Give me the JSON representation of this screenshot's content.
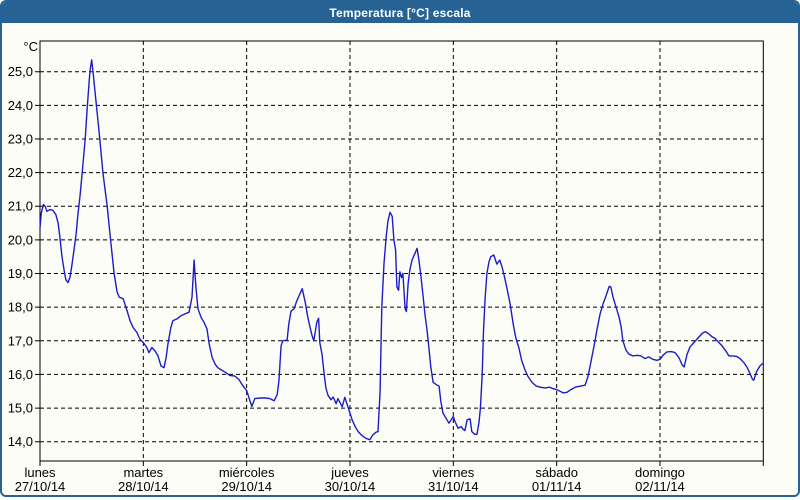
{
  "window": {
    "title": "Temperatura [°C] escala"
  },
  "colors": {
    "title_bar": "#266394",
    "window_border": "#266394",
    "line": "#1c1cc8",
    "grid": "#000000",
    "background": "#fdfdf7"
  },
  "chart_data": {
    "type": "line",
    "title": "Temperatura [°C] escala",
    "ylabel": "°C",
    "unit_label": "°C",
    "ylim": [
      13.4,
      25.9
    ],
    "xlim_hours": [
      0,
      168
    ],
    "grid": true,
    "y_ticks": [
      {
        "value": 25,
        "label": "25,0"
      },
      {
        "value": 24,
        "label": "24,0"
      },
      {
        "value": 23,
        "label": "23,0"
      },
      {
        "value": 22,
        "label": "22,0"
      },
      {
        "value": 21,
        "label": "21,0"
      },
      {
        "value": 20,
        "label": "20,0"
      },
      {
        "value": 19,
        "label": "19,0"
      },
      {
        "value": 18,
        "label": "18,0"
      },
      {
        "value": 17,
        "label": "17,0"
      },
      {
        "value": 16,
        "label": "16,0"
      },
      {
        "value": 15,
        "label": "15,0"
      },
      {
        "value": 14,
        "label": "14,0"
      }
    ],
    "x_days": [
      {
        "name": "lunes",
        "date": "27/10/14",
        "start_hour": 0
      },
      {
        "name": "martes",
        "date": "28/10/14",
        "start_hour": 24
      },
      {
        "name": "miércoles",
        "date": "29/10/14",
        "start_hour": 48
      },
      {
        "name": "jueves",
        "date": "30/10/14",
        "start_hour": 72
      },
      {
        "name": "viernes",
        "date": "31/10/14",
        "start_hour": 96
      },
      {
        "name": "sábado",
        "date": "01/11/14",
        "start_hour": 120
      },
      {
        "name": "domingo",
        "date": "02/11/14",
        "start_hour": 144
      }
    ],
    "series": [
      {
        "name": "Temperatura",
        "color": "#1c1cc8",
        "points": [
          [
            0,
            20.35
          ],
          [
            0.3,
            20.8
          ],
          [
            0.8,
            21.05
          ],
          [
            1.2,
            21.0
          ],
          [
            1.6,
            20.85
          ],
          [
            2.3,
            20.9
          ],
          [
            3.0,
            20.88
          ],
          [
            3.7,
            20.75
          ],
          [
            4.2,
            20.5
          ],
          [
            4.6,
            20.1
          ],
          [
            5.1,
            19.5
          ],
          [
            5.6,
            19.1
          ],
          [
            6.0,
            18.82
          ],
          [
            6.5,
            18.73
          ],
          [
            7.0,
            18.9
          ],
          [
            7.4,
            19.25
          ],
          [
            7.9,
            19.7
          ],
          [
            8.4,
            20.2
          ],
          [
            8.8,
            20.75
          ],
          [
            9.3,
            21.3
          ],
          [
            9.8,
            22.0
          ],
          [
            10.5,
            23.0
          ],
          [
            11.0,
            24.0
          ],
          [
            11.6,
            25.0
          ],
          [
            12.0,
            25.35
          ],
          [
            12.3,
            25.0
          ],
          [
            13.1,
            24.0
          ],
          [
            13.9,
            23.0
          ],
          [
            14.6,
            22.0
          ],
          [
            15.6,
            21.0
          ],
          [
            16.4,
            20.0
          ],
          [
            17.2,
            19.0
          ],
          [
            17.9,
            18.45
          ],
          [
            18.4,
            18.3
          ],
          [
            19.3,
            18.25
          ],
          [
            20.2,
            17.9
          ],
          [
            20.9,
            17.6
          ],
          [
            21.6,
            17.4
          ],
          [
            22.5,
            17.25
          ],
          [
            23.2,
            17.05
          ],
          [
            24,
            16.95
          ],
          [
            24.8,
            16.8
          ],
          [
            25.3,
            16.65
          ],
          [
            26.0,
            16.8
          ],
          [
            26.7,
            16.7
          ],
          [
            27.4,
            16.55
          ],
          [
            28.1,
            16.25
          ],
          [
            28.8,
            16.2
          ],
          [
            29.3,
            16.5
          ],
          [
            29.7,
            16.9
          ],
          [
            30.4,
            17.4
          ],
          [
            30.9,
            17.6
          ],
          [
            31.8,
            17.65
          ],
          [
            32.8,
            17.75
          ],
          [
            33.7,
            17.8
          ],
          [
            34.6,
            17.85
          ],
          [
            35.3,
            18.3
          ],
          [
            35.8,
            19.4
          ],
          [
            36.2,
            18.6
          ],
          [
            36.7,
            17.95
          ],
          [
            37.4,
            17.7
          ],
          [
            38.1,
            17.55
          ],
          [
            38.8,
            17.35
          ],
          [
            39.3,
            16.9
          ],
          [
            40.0,
            16.5
          ],
          [
            40.7,
            16.3
          ],
          [
            41.3,
            16.2
          ],
          [
            42.3,
            16.12
          ],
          [
            43.2,
            16.05
          ],
          [
            44.1,
            15.97
          ],
          [
            45.3,
            15.95
          ],
          [
            46.2,
            15.85
          ],
          [
            47.2,
            15.65
          ],
          [
            48,
            15.52
          ],
          [
            48.8,
            15.2
          ],
          [
            49.2,
            15.05
          ],
          [
            49.9,
            15.28
          ],
          [
            51.1,
            15.3
          ],
          [
            52.3,
            15.3
          ],
          [
            53.4,
            15.28
          ],
          [
            54.4,
            15.22
          ],
          [
            55.1,
            15.4
          ],
          [
            55.5,
            15.8
          ],
          [
            56.0,
            16.85
          ],
          [
            56.4,
            17.0
          ],
          [
            57.4,
            17.02
          ],
          [
            57.8,
            17.5
          ],
          [
            58.3,
            17.88
          ],
          [
            59.0,
            17.95
          ],
          [
            59.7,
            18.2
          ],
          [
            60.4,
            18.4
          ],
          [
            60.9,
            18.55
          ],
          [
            61.6,
            18.15
          ],
          [
            62.2,
            17.7
          ],
          [
            62.7,
            17.42
          ],
          [
            63.2,
            17.15
          ],
          [
            63.6,
            17.0
          ],
          [
            64.3,
            17.55
          ],
          [
            64.7,
            17.67
          ],
          [
            65.0,
            16.95
          ],
          [
            65.5,
            16.6
          ],
          [
            66.0,
            16.0
          ],
          [
            66.4,
            15.6
          ],
          [
            66.9,
            15.38
          ],
          [
            67.6,
            15.25
          ],
          [
            68.1,
            15.33
          ],
          [
            68.8,
            15.13
          ],
          [
            69.2,
            15.28
          ],
          [
            70.2,
            15.04
          ],
          [
            70.8,
            15.32
          ],
          [
            71.5,
            15.05
          ],
          [
            72,
            14.85
          ],
          [
            72.5,
            14.65
          ],
          [
            73.2,
            14.45
          ],
          [
            73.9,
            14.3
          ],
          [
            74.8,
            14.18
          ],
          [
            75.7,
            14.1
          ],
          [
            76.6,
            14.06
          ],
          [
            77.3,
            14.2
          ],
          [
            78.0,
            14.28
          ],
          [
            78.5,
            14.3
          ],
          [
            79.0,
            15.5
          ],
          [
            79.4,
            18.0
          ],
          [
            79.9,
            19.3
          ],
          [
            80.4,
            20.1
          ],
          [
            80.8,
            20.55
          ],
          [
            81.3,
            20.82
          ],
          [
            81.8,
            20.7
          ],
          [
            82.2,
            20.0
          ],
          [
            82.6,
            19.7
          ],
          [
            82.9,
            18.6
          ],
          [
            83.3,
            18.5
          ],
          [
            83.6,
            19.05
          ],
          [
            84.0,
            18.88
          ],
          [
            84.3,
            19.0
          ],
          [
            84.8,
            17.95
          ],
          [
            85.1,
            17.87
          ],
          [
            85.5,
            18.7
          ],
          [
            85.9,
            19.1
          ],
          [
            86.4,
            19.4
          ],
          [
            87.1,
            19.6
          ],
          [
            87.6,
            19.75
          ],
          [
            88.0,
            19.4
          ],
          [
            88.5,
            18.9
          ],
          [
            89.0,
            18.3
          ],
          [
            89.4,
            17.8
          ],
          [
            89.9,
            17.3
          ],
          [
            90.4,
            16.7
          ],
          [
            90.8,
            16.2
          ],
          [
            91.3,
            15.77
          ],
          [
            92.0,
            15.7
          ],
          [
            92.7,
            15.65
          ],
          [
            93.1,
            15.2
          ],
          [
            93.6,
            14.85
          ],
          [
            94.3,
            14.7
          ],
          [
            95.0,
            14.55
          ],
          [
            95.5,
            14.65
          ],
          [
            96,
            14.75
          ],
          [
            96.4,
            14.6
          ],
          [
            97.1,
            14.4
          ],
          [
            97.8,
            14.45
          ],
          [
            98.2,
            14.38
          ],
          [
            98.7,
            14.33
          ],
          [
            99.2,
            14.65
          ],
          [
            99.9,
            14.68
          ],
          [
            100.3,
            14.3
          ],
          [
            101.0,
            14.22
          ],
          [
            101.5,
            14.22
          ],
          [
            102.0,
            14.6
          ],
          [
            102.3,
            15.0
          ],
          [
            102.7,
            16.0
          ],
          [
            103.0,
            17.3
          ],
          [
            103.4,
            18.3
          ],
          [
            103.8,
            19.0
          ],
          [
            104.3,
            19.35
          ],
          [
            104.7,
            19.5
          ],
          [
            105.4,
            19.55
          ],
          [
            106.1,
            19.28
          ],
          [
            106.8,
            19.4
          ],
          [
            107.3,
            19.2
          ],
          [
            107.7,
            19.0
          ],
          [
            108.4,
            18.6
          ],
          [
            109.2,
            18.1
          ],
          [
            109.9,
            17.5
          ],
          [
            110.5,
            17.1
          ],
          [
            111.2,
            16.8
          ],
          [
            111.9,
            16.4
          ],
          [
            112.6,
            16.15
          ],
          [
            113.3,
            15.95
          ],
          [
            114.3,
            15.76
          ],
          [
            115.2,
            15.66
          ],
          [
            116.1,
            15.62
          ],
          [
            117.3,
            15.6
          ],
          [
            118.4,
            15.62
          ],
          [
            119.1,
            15.58
          ],
          [
            120,
            15.55
          ],
          [
            120.8,
            15.5
          ],
          [
            121.5,
            15.45
          ],
          [
            122.4,
            15.47
          ],
          [
            123.3,
            15.55
          ],
          [
            124.3,
            15.62
          ],
          [
            125.4,
            15.65
          ],
          [
            126.6,
            15.68
          ],
          [
            127.3,
            15.95
          ],
          [
            128.0,
            16.4
          ],
          [
            128.7,
            16.85
          ],
          [
            129.4,
            17.35
          ],
          [
            130.1,
            17.8
          ],
          [
            130.8,
            18.1
          ],
          [
            131.5,
            18.35
          ],
          [
            132.2,
            18.62
          ],
          [
            132.6,
            18.6
          ],
          [
            133.1,
            18.3
          ],
          [
            133.8,
            18.0
          ],
          [
            134.5,
            17.7
          ],
          [
            135.0,
            17.4
          ],
          [
            135.4,
            17.0
          ],
          [
            136.1,
            16.72
          ],
          [
            136.8,
            16.6
          ],
          [
            137.7,
            16.55
          ],
          [
            138.7,
            16.57
          ],
          [
            139.6,
            16.55
          ],
          [
            140.5,
            16.47
          ],
          [
            141.4,
            16.52
          ],
          [
            142.3,
            16.45
          ],
          [
            143.3,
            16.42
          ],
          [
            144,
            16.45
          ],
          [
            144.7,
            16.57
          ],
          [
            145.6,
            16.67
          ],
          [
            146.6,
            16.68
          ],
          [
            147.5,
            16.65
          ],
          [
            148.4,
            16.5
          ],
          [
            149.1,
            16.3
          ],
          [
            149.6,
            16.22
          ],
          [
            150.3,
            16.6
          ],
          [
            151.0,
            16.82
          ],
          [
            151.9,
            16.95
          ],
          [
            152.8,
            17.08
          ],
          [
            153.8,
            17.22
          ],
          [
            154.5,
            17.27
          ],
          [
            155.2,
            17.22
          ],
          [
            156.1,
            17.12
          ],
          [
            156.8,
            17.07
          ],
          [
            157.5,
            16.97
          ],
          [
            158.4,
            16.85
          ],
          [
            159.3,
            16.7
          ],
          [
            160.0,
            16.55
          ],
          [
            161.0,
            16.55
          ],
          [
            161.9,
            16.53
          ],
          [
            162.6,
            16.47
          ],
          [
            163.5,
            16.35
          ],
          [
            164.2,
            16.22
          ],
          [
            164.9,
            16.03
          ],
          [
            165.5,
            15.85
          ],
          [
            165.8,
            15.83
          ],
          [
            166.5,
            16.1
          ],
          [
            167.2,
            16.25
          ],
          [
            167.9,
            16.33
          ]
        ]
      }
    ]
  }
}
